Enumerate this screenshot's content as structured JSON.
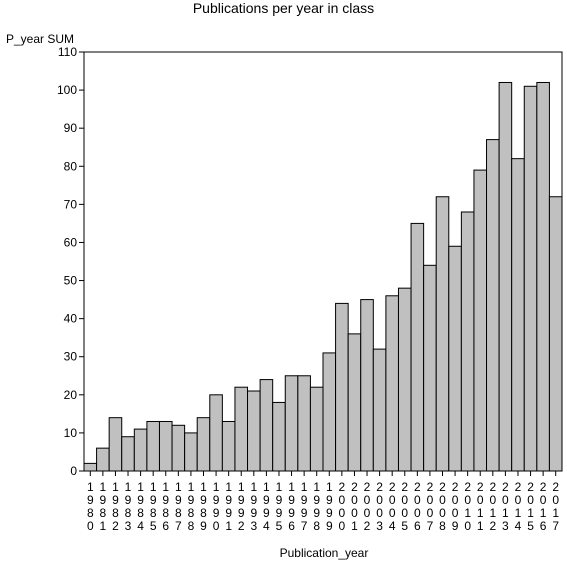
{
  "chart_data": {
    "type": "bar",
    "title": "Publications per year in class",
    "ylabel": "P_year SUM",
    "xlabel": "Publication_year",
    "ylim": [
      0,
      110
    ],
    "yticks": [
      0,
      10,
      20,
      30,
      40,
      50,
      60,
      70,
      80,
      90,
      100,
      110
    ],
    "grid": false,
    "bar_color": "#c0c0c0",
    "categories": [
      "1980",
      "1981",
      "1982",
      "1983",
      "1984",
      "1985",
      "1986",
      "1987",
      "1988",
      "1989",
      "1990",
      "1991",
      "1992",
      "1993",
      "1994",
      "1995",
      "1996",
      "1997",
      "1998",
      "1999",
      "2000",
      "2001",
      "2002",
      "2003",
      "2004",
      "2005",
      "2006",
      "2007",
      "2008",
      "2009",
      "2010",
      "2011",
      "2012",
      "2013",
      "2014",
      "2015",
      "2016",
      "2017"
    ],
    "values": [
      2,
      6,
      14,
      9,
      11,
      13,
      13,
      12,
      10,
      14,
      20,
      13,
      22,
      21,
      24,
      18,
      25,
      25,
      22,
      31,
      44,
      36,
      45,
      32,
      46,
      48,
      65,
      54,
      72,
      59,
      68,
      79,
      87,
      102,
      82,
      101,
      102,
      72
    ]
  }
}
